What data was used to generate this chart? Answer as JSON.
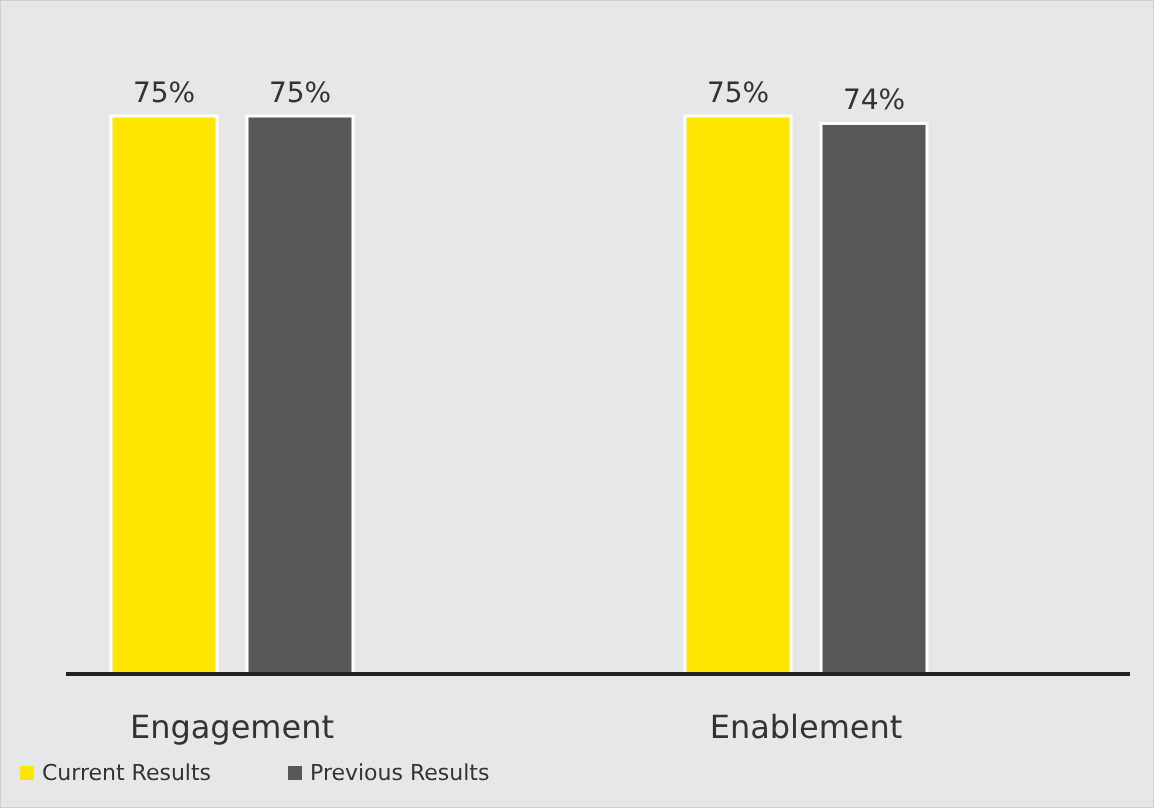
{
  "chart_data": {
    "type": "bar",
    "categories": [
      "Engagement",
      "Enablement"
    ],
    "series": [
      {
        "name": "Current Results",
        "color": "#ffe600",
        "values": [
          75,
          75
        ],
        "value_labels": [
          "75%",
          "75%"
        ]
      },
      {
        "name": "Previous Results",
        "color": "#58585a",
        "values": [
          75,
          74
        ],
        "value_labels": [
          "75%",
          "74%"
        ]
      }
    ],
    "legend": "bottom left"
  }
}
